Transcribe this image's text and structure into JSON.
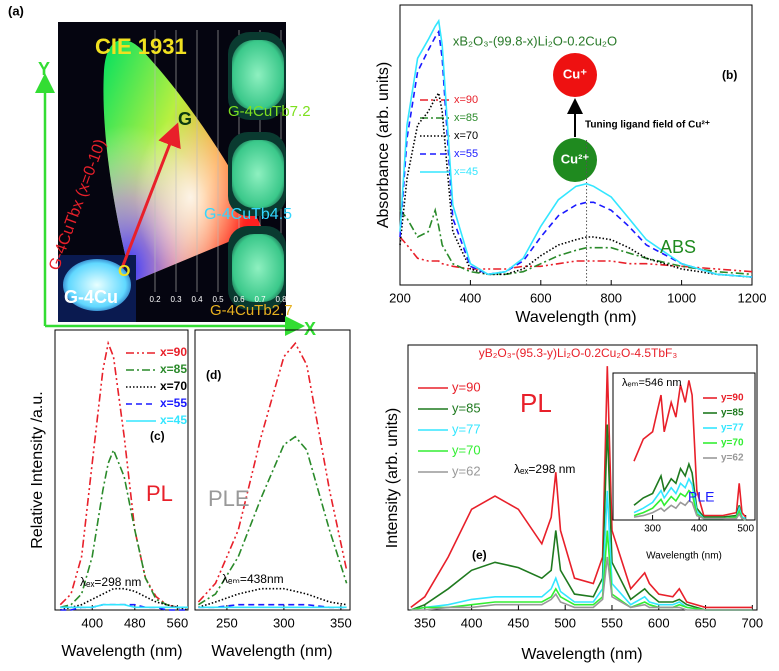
{
  "chart_data": [
    {
      "type": "cie",
      "annotations": [
        "(a)",
        "CIE 1931",
        "G-4CuTbx (x=0-10)",
        "G",
        "O",
        "G-4Cu",
        "G-4CuTb7.2",
        "G-4CuTb4.5",
        "G-4CuTb2.7",
        "X",
        "Y"
      ],
      "xlim": [
        0,
        0.8
      ],
      "xticks": [
        0.2,
        0.3,
        0.4,
        0.5,
        0.6,
        0.7,
        0.8
      ],
      "grid": true
    },
    {
      "type": "line",
      "title": "xB₂O₃-(99.8-x)Li₂O-0.2Cu₂O",
      "xlabel": "Wavelength (nm)",
      "ylabel": "Absorbance (arb. units)",
      "xlim": [
        200,
        1200
      ],
      "xticks": [
        200,
        400,
        600,
        800,
        1000,
        1200
      ],
      "ylim": [
        0,
        105
      ],
      "vline": 730,
      "annotations": [
        "(b)",
        "Cu⁺",
        "Cu²⁺",
        "Tuning ligand field of Cu²⁺",
        "ABS"
      ],
      "x": [
        200,
        220,
        250,
        280,
        300,
        310,
        320,
        350,
        400,
        450,
        500,
        550,
        600,
        650,
        700,
        730,
        750,
        800,
        850,
        900,
        1000,
        1100,
        1200
      ],
      "series": [
        {
          "name": "x=90",
          "color": "#e8202a",
          "style": "dash-dot-dot",
          "values": [
            18,
            15,
            10,
            9,
            9,
            9,
            8,
            7,
            6,
            6,
            6,
            7,
            7,
            8,
            9,
            9,
            9,
            9,
            8,
            8,
            7,
            6,
            5
          ]
        },
        {
          "name": "x=85",
          "color": "#2a8a2a",
          "style": "dash-dot",
          "values": [
            28,
            25,
            18,
            20,
            28,
            22,
            15,
            8,
            5,
            4,
            4,
            5,
            8,
            11,
            13,
            14,
            14,
            14,
            12,
            10,
            7,
            5,
            4
          ]
        },
        {
          "name": "x=70",
          "color": "#000000",
          "style": "dot",
          "values": [
            15,
            40,
            60,
            65,
            70,
            72,
            65,
            20,
            6,
            4,
            4,
            6,
            11,
            15,
            17,
            18,
            18,
            17,
            14,
            10,
            6,
            4,
            3
          ]
        },
        {
          "name": "x=55",
          "color": "#1a1aff",
          "style": "dash",
          "values": [
            18,
            55,
            80,
            88,
            93,
            95,
            85,
            25,
            7,
            4,
            5,
            9,
            18,
            26,
            30,
            31,
            31,
            28,
            22,
            15,
            8,
            4,
            3
          ]
        },
        {
          "name": "x=45",
          "color": "#33e6ff",
          "style": "solid",
          "values": [
            20,
            60,
            85,
            92,
            97,
            99,
            90,
            30,
            8,
            4,
            5,
            10,
            22,
            32,
            37,
            38,
            37,
            33,
            25,
            17,
            8,
            4,
            3
          ]
        }
      ]
    },
    {
      "type": "line",
      "xlabel": "Wavelength (nm)",
      "ylabel": "Relative Intensity /a.u.",
      "xlim": [
        330,
        580
      ],
      "xticks": [
        400,
        480,
        560
      ],
      "ylim": [
        0,
        105
      ],
      "annotations": [
        "(c)",
        "PL",
        "λₑₓ=298 nm"
      ],
      "x": [
        340,
        360,
        380,
        400,
        420,
        430,
        440,
        460,
        480,
        500,
        520,
        540,
        560,
        580
      ],
      "series": [
        {
          "name": "x=90",
          "color": "#e8202a",
          "style": "dash-dot-dot",
          "values": [
            2,
            6,
            20,
            55,
            90,
            100,
            95,
            65,
            30,
            12,
            5,
            2,
            1,
            1
          ]
        },
        {
          "name": "x=85",
          "color": "#2a8a2a",
          "style": "dash-dot",
          "values": [
            1,
            2,
            6,
            20,
            45,
            55,
            60,
            50,
            30,
            12,
            4,
            2,
            1,
            1
          ]
        },
        {
          "name": "x=70",
          "color": "#000000",
          "style": "dot",
          "values": [
            0,
            1,
            2,
            4,
            6,
            7,
            8,
            8,
            7,
            5,
            3,
            2,
            1,
            0
          ]
        },
        {
          "name": "x=55",
          "color": "#1a1aff",
          "style": "dash",
          "values": [
            0,
            0,
            1,
            1,
            2,
            2,
            2,
            2,
            2,
            1,
            1,
            0,
            0,
            0
          ]
        },
        {
          "name": "x=45",
          "color": "#33e6ff",
          "style": "solid",
          "values": [
            1,
            1,
            1,
            1,
            2,
            2,
            2,
            2,
            1,
            1,
            1,
            1,
            1,
            1
          ]
        }
      ]
    },
    {
      "type": "line",
      "xlabel": "Wavelength (nm)",
      "xlim": [
        222,
        358
      ],
      "xticks": [
        250,
        300,
        350
      ],
      "ylim": [
        0,
        105
      ],
      "annotations": [
        "(d)",
        "PLE",
        "λₑₘ=438nm"
      ],
      "x": [
        225,
        240,
        260,
        280,
        300,
        310,
        320,
        340,
        355
      ],
      "series": [
        {
          "color": "#e8202a",
          "style": "dash-dot-dot",
          "values": [
            3,
            10,
            30,
            65,
            95,
            100,
            92,
            45,
            15
          ]
        },
        {
          "color": "#2a8a2a",
          "style": "dash-dot",
          "values": [
            2,
            6,
            20,
            42,
            62,
            65,
            60,
            30,
            10
          ]
        },
        {
          "color": "#000000",
          "style": "dot",
          "values": [
            1,
            3,
            6,
            8,
            8,
            7,
            6,
            3,
            2
          ]
        },
        {
          "color": "#1a1aff",
          "style": "dash",
          "values": [
            1,
            1,
            2,
            2,
            2,
            2,
            2,
            1,
            1
          ]
        },
        {
          "color": "#33e6ff",
          "style": "solid",
          "values": [
            1,
            1,
            1,
            1,
            1,
            1,
            1,
            1,
            1
          ]
        }
      ]
    },
    {
      "type": "line",
      "title": "yB₂O₃-(95.3-y)Li₂O-0.2Cu₂O-4.5TbF₃",
      "xlabel": "Wavelength (nm)",
      "ylabel": "Intensity (arb. units)",
      "xlim": [
        332,
        705
      ],
      "xticks": [
        350,
        400,
        450,
        500,
        550,
        600,
        650,
        700
      ],
      "ylim": [
        0,
        100
      ],
      "annotations": [
        "PL",
        "λₑₓ=298 nm",
        "(e)"
      ],
      "x": [
        335,
        350,
        375,
        400,
        425,
        450,
        475,
        485,
        490,
        495,
        510,
        530,
        540,
        545,
        550,
        570,
        585,
        590,
        600,
        615,
        622,
        630,
        650,
        700
      ],
      "series": [
        {
          "name": "y=90",
          "color": "#e8202a",
          "style": "solid",
          "values": [
            1,
            5,
            20,
            38,
            43,
            38,
            25,
            35,
            52,
            30,
            12,
            10,
            20,
            92,
            30,
            8,
            14,
            10,
            6,
            5,
            8,
            3,
            1,
            1
          ]
        },
        {
          "name": "y=85",
          "color": "#1f7a1f",
          "style": "solid",
          "values": [
            0,
            2,
            8,
            15,
            18,
            16,
            12,
            15,
            30,
            15,
            6,
            5,
            12,
            70,
            18,
            4,
            8,
            6,
            3,
            3,
            4,
            2,
            0,
            0
          ]
        },
        {
          "name": "y=77",
          "color": "#33e6ff",
          "style": "solid",
          "values": [
            0,
            1,
            2,
            4,
            5,
            5,
            5,
            8,
            12,
            7,
            3,
            3,
            8,
            45,
            10,
            2,
            5,
            3,
            2,
            2,
            3,
            1,
            0,
            0
          ]
        },
        {
          "name": "y=70",
          "color": "#33ee33",
          "style": "solid",
          "values": [
            0,
            1,
            1,
            2,
            3,
            3,
            3,
            5,
            8,
            5,
            2,
            2,
            5,
            30,
            6,
            1,
            3,
            2,
            1,
            1,
            2,
            1,
            0,
            0
          ]
        },
        {
          "name": "y=62",
          "color": "#999999",
          "style": "solid",
          "values": [
            0,
            0,
            1,
            1,
            2,
            2,
            2,
            4,
            6,
            3,
            1,
            1,
            4,
            20,
            5,
            1,
            2,
            1,
            1,
            1,
            1,
            0,
            0,
            0
          ]
        }
      ]
    },
    {
      "type": "line",
      "title": "λₑₘ=546 nm",
      "xlabel": "Wavelength (nm)",
      "xlim": [
        215,
        520
      ],
      "xticks": [
        300,
        400,
        500
      ],
      "ylim": [
        0,
        100
      ],
      "annotations": [
        "PLE"
      ],
      "x": [
        260,
        280,
        300,
        318,
        325,
        340,
        350,
        360,
        370,
        378,
        385,
        395,
        410,
        450,
        480,
        486,
        492,
        500
      ],
      "series": [
        {
          "name": "y=90",
          "color": "#e8202a",
          "style": "solid",
          "values": [
            40,
            55,
            60,
            85,
            60,
            80,
            70,
            92,
            80,
            95,
            85,
            20,
            3,
            3,
            5,
            25,
            5,
            2
          ]
        },
        {
          "name": "y=85",
          "color": "#1f7a1f",
          "style": "solid",
          "values": [
            10,
            15,
            18,
            30,
            20,
            28,
            25,
            35,
            30,
            38,
            32,
            8,
            2,
            2,
            3,
            10,
            2,
            1
          ]
        },
        {
          "name": "y=77",
          "color": "#33e6ff",
          "style": "solid",
          "values": [
            5,
            8,
            12,
            20,
            15,
            22,
            18,
            25,
            22,
            28,
            24,
            6,
            1,
            1,
            2,
            8,
            2,
            1
          ]
        },
        {
          "name": "y=70",
          "color": "#33ee33",
          "style": "solid",
          "values": [
            3,
            5,
            8,
            14,
            10,
            16,
            13,
            18,
            16,
            20,
            18,
            4,
            1,
            1,
            2,
            6,
            1,
            0
          ]
        },
        {
          "name": "y=62",
          "color": "#999999",
          "style": "solid",
          "values": [
            2,
            3,
            5,
            8,
            6,
            10,
            8,
            12,
            10,
            13,
            12,
            3,
            1,
            1,
            1,
            4,
            1,
            0
          ]
        }
      ]
    }
  ]
}
